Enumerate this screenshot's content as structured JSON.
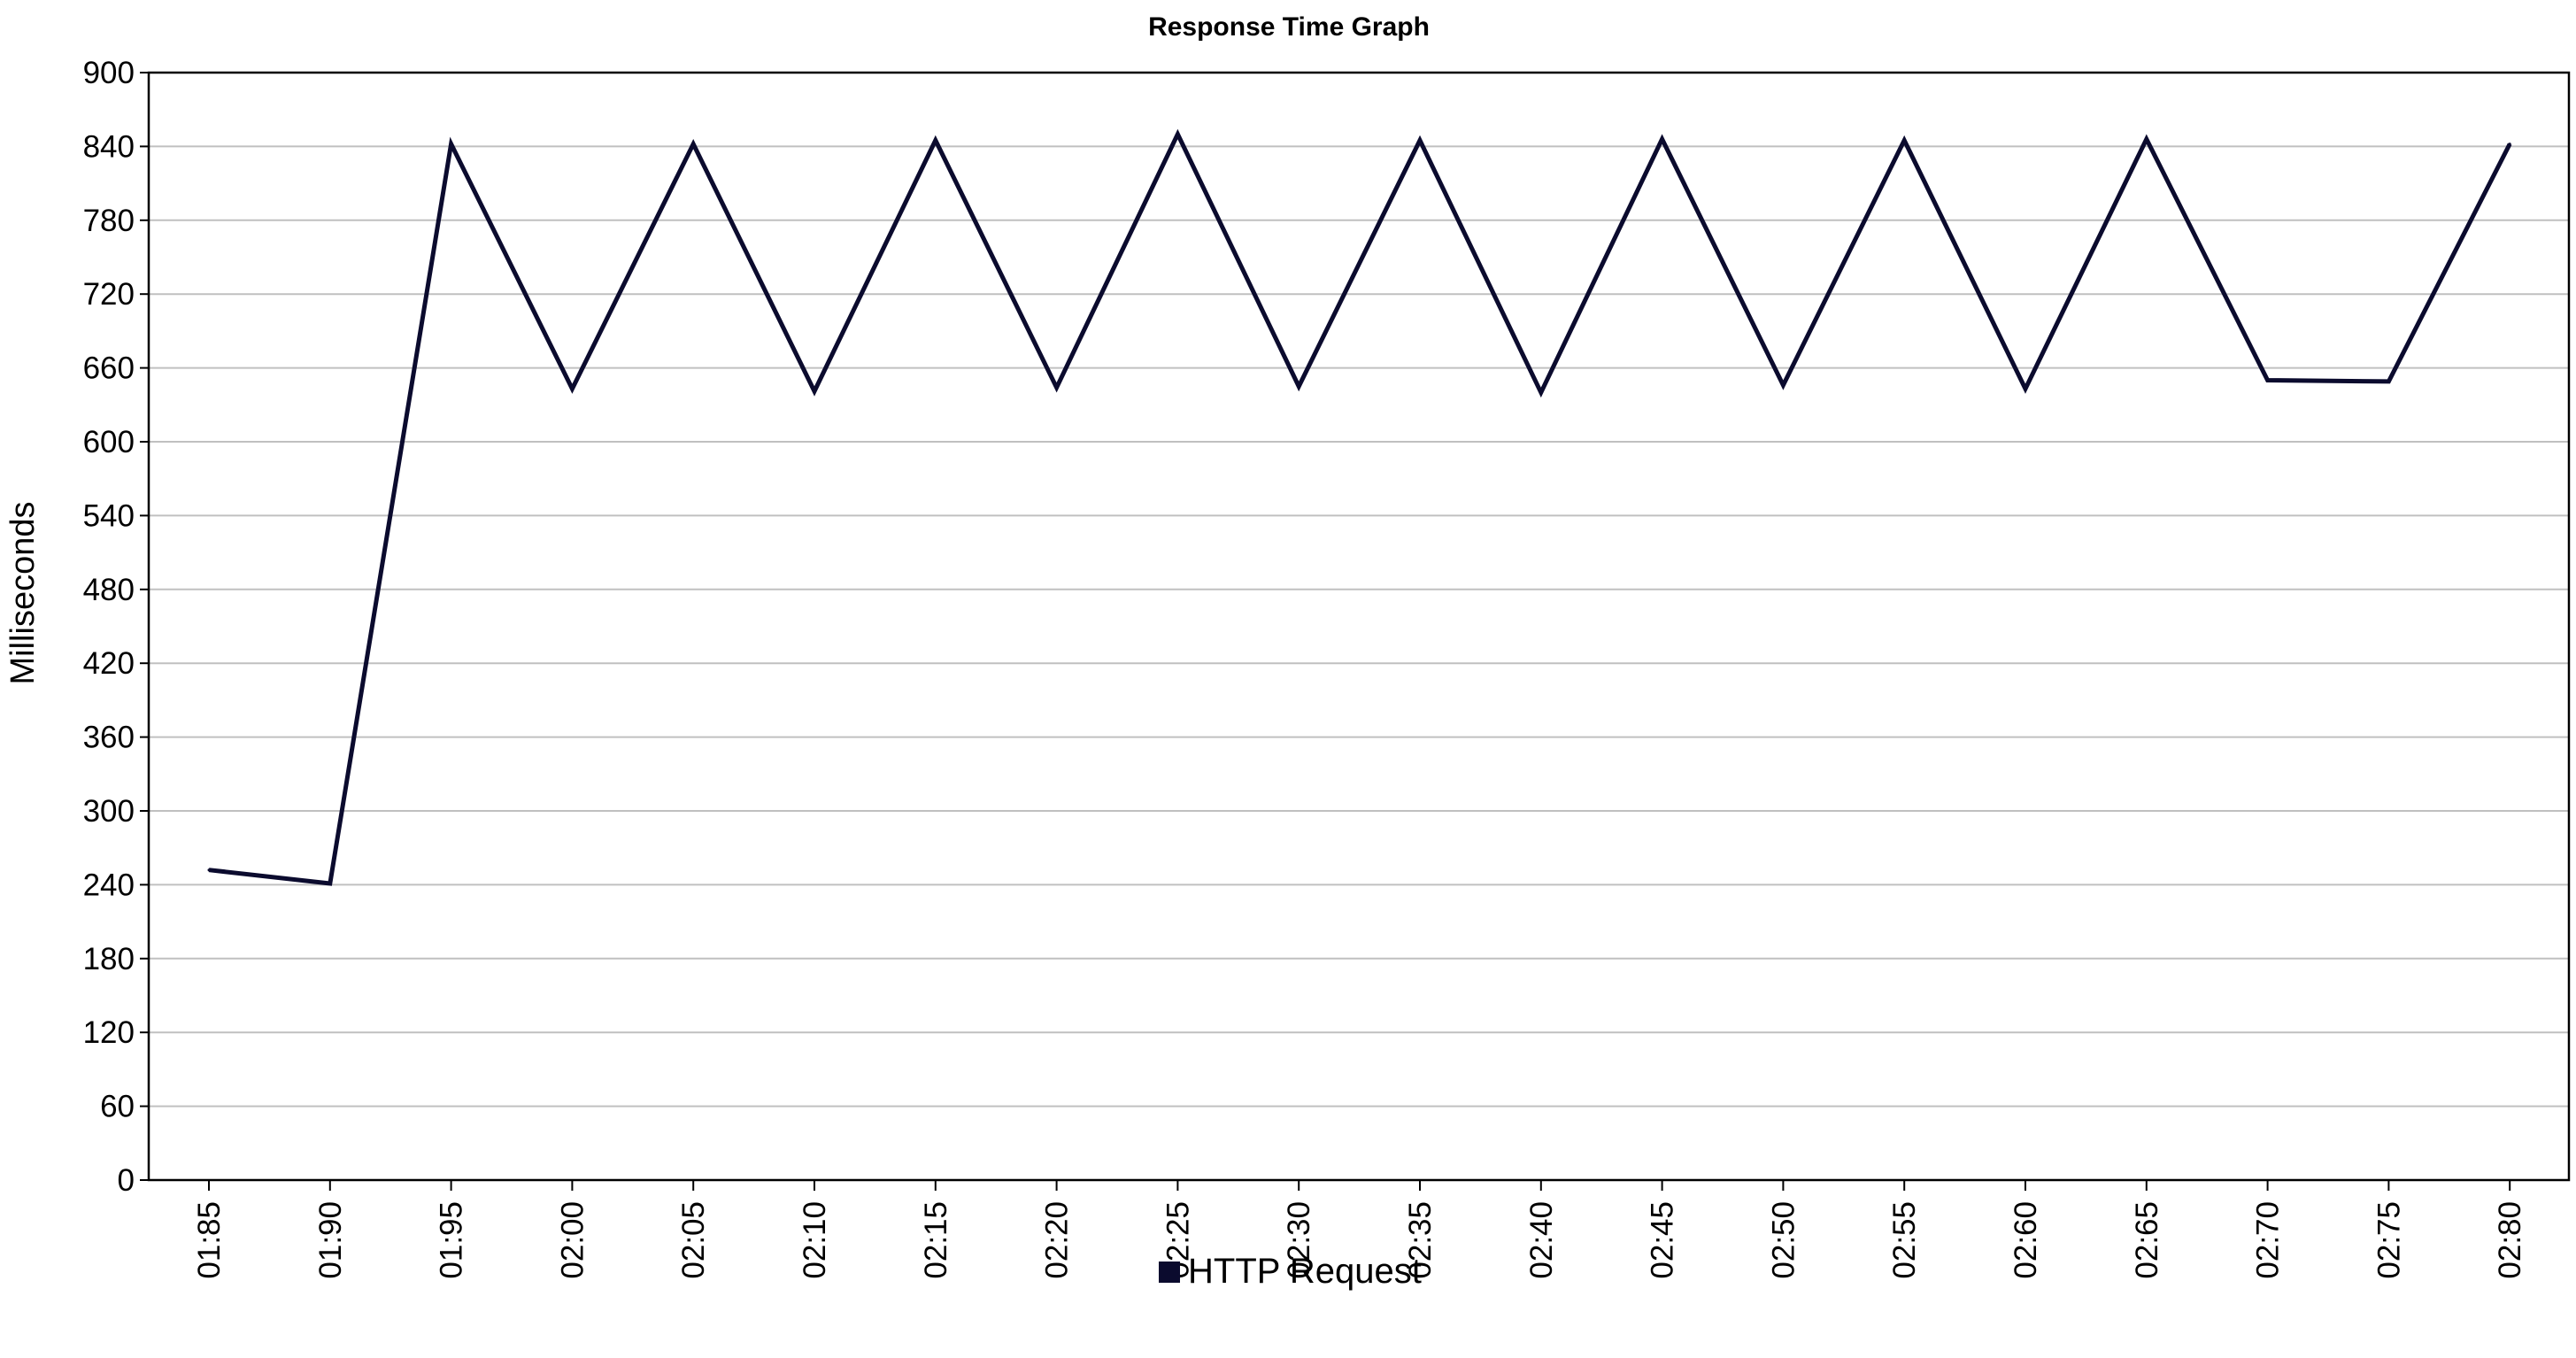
{
  "chart_data": {
    "type": "line",
    "title": "Response Time Graph",
    "xlabel": "",
    "ylabel": "Milliseconds",
    "ylim": [
      0,
      900
    ],
    "yticks": [
      "0",
      "60",
      "120",
      "180",
      "240",
      "300",
      "360",
      "420",
      "480",
      "540",
      "600",
      "660",
      "720",
      "780",
      "840",
      "900"
    ],
    "x": [
      "01:85",
      "01:90",
      "01:95",
      "02:00",
      "02:05",
      "02:10",
      "02:15",
      "02:20",
      "02:25",
      "02:30",
      "02:35",
      "02:40",
      "02:45",
      "02:50",
      "02:55",
      "02:60",
      "02:65",
      "02:70",
      "02:75",
      "02:80"
    ],
    "grid": true,
    "legend_position": "bottom",
    "series": [
      {
        "name": "HTTP Request",
        "color": "#0b0b2e",
        "values": [
          252,
          241,
          842,
          643,
          842,
          641,
          845,
          644,
          850,
          645,
          845,
          640,
          846,
          646,
          845,
          643,
          846,
          650,
          649,
          842
        ]
      }
    ]
  }
}
